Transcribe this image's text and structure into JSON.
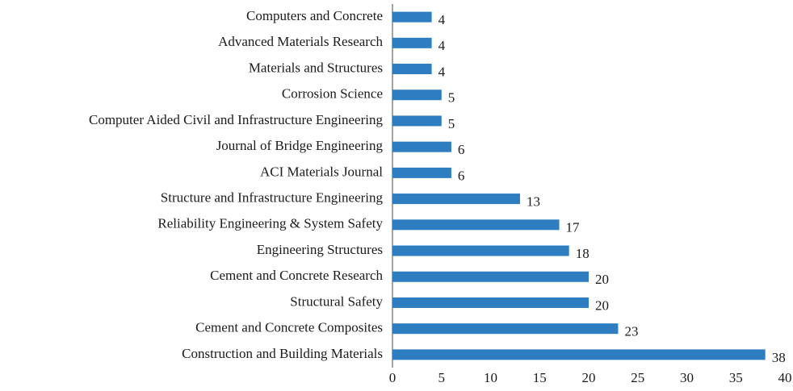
{
  "chart_data": {
    "type": "bar",
    "orientation": "horizontal",
    "color": "#2e7dc0",
    "categories": [
      "Computers and Concrete",
      "Advanced Materials Research",
      "Materials and Structures",
      "Corrosion Science",
      "Computer Aided Civil and Infrastructure Engineering",
      "Journal of Bridge Engineering",
      "ACI Materials Journal",
      "Structure and Infrastructure Engineering",
      "Reliability Engineering & System Safety",
      "Engineering Structures",
      "Cement and Concrete Research",
      "Structural Safety",
      "Cement and Concrete Composites",
      "Construction and Building Materials"
    ],
    "values": [
      4,
      4,
      4,
      5,
      5,
      6,
      6,
      13,
      17,
      18,
      20,
      20,
      23,
      38
    ],
    "xlim": [
      0,
      40
    ],
    "xticks": [
      0,
      5,
      10,
      15,
      20,
      25,
      30,
      35,
      40
    ],
    "grid": false
  }
}
